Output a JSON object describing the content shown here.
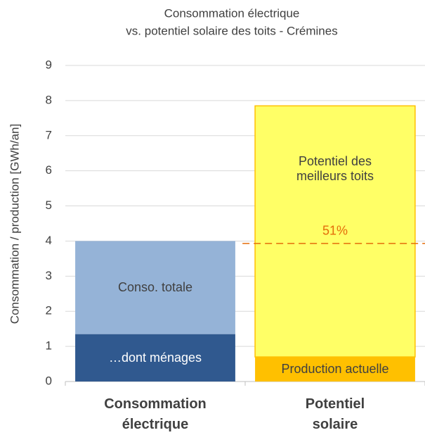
{
  "chart_data": {
    "type": "stacked_bar",
    "title": "Consommation électrique",
    "subtitle": "vs. potentiel solaire des toits - Crémines",
    "y_label": "Consommation / production [GWh/an]",
    "categories": [
      "Consommation électrique",
      "Potentiel solaire"
    ],
    "series": [
      {
        "name": "…dont ménages",
        "color": "#30598f",
        "label_color": "#ffffff",
        "values": [
          1.35,
          null
        ]
      },
      {
        "name": "Conso. totale",
        "color": "#95b3d7",
        "label_color": "#404040",
        "values": [
          2.65,
          null
        ]
      },
      {
        "name": "Production actuelle",
        "color": "#ffc000",
        "label_color": "#404040",
        "values": [
          null,
          0.7
        ]
      },
      {
        "name": "Potentiel des meilleurs toits",
        "color": "#ffff66",
        "border": "#ffc000",
        "label_color": "#404040",
        "values": [
          null,
          7.15
        ]
      }
    ],
    "reference_line": {
      "y": 3.93,
      "label": "51%",
      "color": "#e46c0a"
    },
    "ylim": [
      0,
      9
    ],
    "yticks": [
      0,
      1,
      2,
      3,
      4,
      5,
      6,
      7,
      8,
      9
    ],
    "grid": true
  }
}
